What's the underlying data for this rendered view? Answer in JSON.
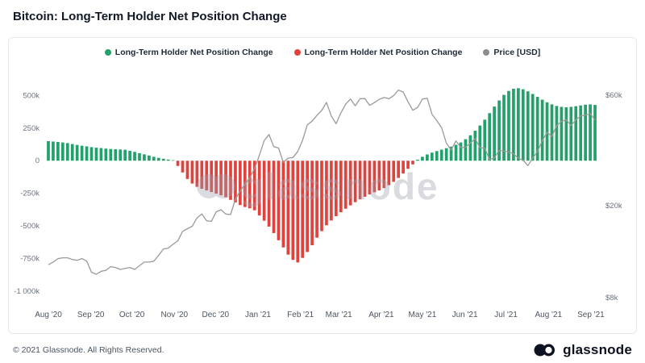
{
  "page": {
    "title": "Bitcoin: Long-Term Holder Net Position Change",
    "footer_copyright": "© 2021 Glassnode. All Rights Reserved.",
    "brand": "glassnode",
    "watermark": "glassnode"
  },
  "legend": [
    {
      "label": "Long-Term Holder Net Position Change",
      "color": "#24a06b"
    },
    {
      "label": "Long-Term Holder Net Position Change",
      "color": "#e0433d"
    },
    {
      "label": "Price [USD]",
      "color": "#8c8c8c"
    }
  ],
  "chart_data": {
    "type": "bar",
    "title": "Bitcoin: Long-Term Holder Net Position Change",
    "x_unit": "semiweekly samples, Aug 2020 - Sep 2021",
    "x_ticks": [
      {
        "label": "Aug '20",
        "i": 0
      },
      {
        "label": "Sep '20",
        "i": 8.86
      },
      {
        "label": "Oct '20",
        "i": 17.43
      },
      {
        "label": "Nov '20",
        "i": 26.29
      },
      {
        "label": "Dec '20",
        "i": 34.86
      },
      {
        "label": "Jan '21",
        "i": 43.71
      },
      {
        "label": "Feb '21",
        "i": 52.57
      },
      {
        "label": "Mar '21",
        "i": 60.57
      },
      {
        "label": "Apr '21",
        "i": 69.43
      },
      {
        "label": "May '21",
        "i": 78
      },
      {
        "label": "Jun '21",
        "i": 86.86
      },
      {
        "label": "Jul '21",
        "i": 95.43
      },
      {
        "label": "Aug '21",
        "i": 104.29
      },
      {
        "label": "Sep '21",
        "i": 113.14
      }
    ],
    "left_axis": {
      "unit": "BTC (thousands)",
      "ylim_k": [
        -1050,
        620
      ],
      "ticks": [
        {
          "label": "500k",
          "value": 500
        },
        {
          "label": "250k",
          "value": 250
        },
        {
          "label": "0",
          "value": 0
        },
        {
          "label": "-250k",
          "value": -250
        },
        {
          "label": "-500k",
          "value": -500
        },
        {
          "label": "-750k",
          "value": -750
        },
        {
          "label": "-1 000k",
          "value": -1000
        }
      ]
    },
    "right_axis": {
      "label": "Price [USD]",
      "scale": "log",
      "ylim_usd_k": [
        8,
        70
      ],
      "ticks": [
        {
          "label": "$60k",
          "value": 60
        },
        {
          "label": "$20k",
          "value": 20
        },
        {
          "label": "$8k",
          "value": 8
        }
      ]
    },
    "series": [
      {
        "name": "Long-Term Holder Net Position Change",
        "type": "bar",
        "color_positive": "#24a06b",
        "color_negative": "#e0433d",
        "unit": "BTC thousands",
        "values_k": [
          150,
          147,
          144,
          140,
          135,
          128,
          121,
          115,
          110,
          104,
          100,
          97,
          93,
          90,
          88,
          86,
          84,
          76,
          68,
          58,
          49,
          40,
          30,
          22,
          15,
          9,
          4,
          -40,
          -90,
          -140,
          -175,
          -200,
          -215,
          -228,
          -240,
          -252,
          -265,
          -280,
          -300,
          -320,
          -340,
          -355,
          -365,
          -380,
          -420,
          -460,
          -505,
          -555,
          -610,
          -665,
          -720,
          -760,
          -780,
          -745,
          -700,
          -648,
          -590,
          -540,
          -495,
          -458,
          -425,
          -395,
          -368,
          -342,
          -318,
          -296,
          -276,
          -258,
          -242,
          -228,
          -210,
          -188,
          -162,
          -132,
          -98,
          -62,
          -28,
          8,
          30,
          48,
          62,
          74,
          85,
          96,
          108,
          122,
          140,
          165,
          195,
          230,
          270,
          315,
          365,
          415,
          462,
          505,
          535,
          552,
          556,
          548,
          532,
          512,
          490,
          468,
          448,
          432,
          420,
          413,
          410,
          413,
          418,
          424,
          430,
          432,
          428
        ]
      },
      {
        "name": "Price [USD]",
        "type": "line",
        "axis": "right",
        "color": "#9a9a9a",
        "values_usd_k": [
          11.1,
          11.4,
          11.8,
          11.9,
          11.9,
          11.7,
          11.6,
          11.8,
          11.5,
          10.3,
          10.1,
          10.4,
          10.5,
          10.9,
          10.8,
          10.6,
          10.7,
          10.8,
          10.6,
          11.0,
          11.4,
          11.4,
          11.5,
          12.2,
          13.0,
          13.1,
          13.6,
          14.1,
          15.5,
          15.9,
          16.3,
          17.7,
          18.4,
          17.2,
          17.1,
          18.8,
          19.2,
          18.4,
          18.3,
          21.3,
          23.2,
          24.7,
          26.4,
          28.9,
          33.0,
          38.2,
          40.6,
          36.0,
          35.5,
          30.8,
          32.1,
          32.3,
          34.3,
          38.3,
          44.8,
          46.4,
          49.2,
          51.6,
          55.9,
          48.9,
          45.2,
          50.4,
          54.9,
          57.8,
          54.1,
          58.0,
          58.1,
          54.3,
          55.8,
          57.7,
          58.7,
          58.0,
          59.8,
          63.2,
          62.0,
          56.2,
          51.7,
          53.2,
          57.8,
          58.3,
          49.7,
          46.7,
          43.5,
          37.3,
          34.8,
          38.1,
          35.7,
          35.8,
          37.3,
          39.0,
          35.6,
          35.5,
          31.6,
          32.2,
          34.7,
          34.4,
          34.2,
          33.5,
          32.1,
          31.4,
          29.8,
          32.1,
          34.3,
          38.2,
          41.5,
          39.9,
          44.4,
          46.3,
          47.1,
          44.4,
          47.0,
          48.9,
          49.3,
          50.0,
          46.9
        ]
      }
    ]
  }
}
